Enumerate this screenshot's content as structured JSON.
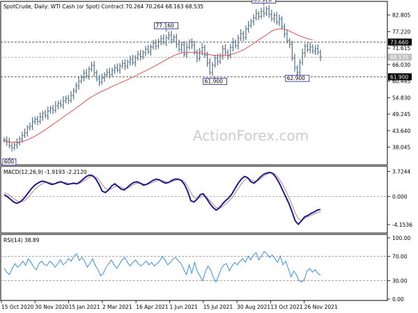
{
  "chart_data": [
    {
      "type": "ohlc",
      "name": "price",
      "title": "SpotCrude, Daily:  WTI Cash (or Spot) Contract  70.264 70.264 68.163 68.535",
      "ylim": [
        32.3,
        87.2
      ],
      "y_ticks": [
        "82.805",
        "77.220",
        "71.615",
        "66.030",
        "60.445",
        "54.830",
        "49.245",
        "43.640",
        "38.045"
      ],
      "y_tick_values": [
        82.805,
        77.22,
        71.615,
        66.03,
        60.445,
        54.83,
        49.245,
        43.64,
        38.045
      ],
      "closes": [
        40.5,
        39.8,
        38.6,
        37.9,
        38.8,
        39.5,
        40.8,
        42.1,
        42.9,
        44.6,
        45.2,
        46.7,
        47.5,
        46.8,
        48.3,
        49.5,
        48.7,
        50.3,
        51.2,
        50.6,
        52.1,
        52.9,
        52.3,
        53.8,
        54.6,
        53.9,
        55.5,
        57.2,
        58.8,
        60.4,
        61.7,
        63.1,
        62.2,
        64.5,
        65.8,
        63.3,
        61.2,
        60.1,
        61.5,
        62.6,
        63.4,
        62.7,
        64.1,
        64.9,
        64.2,
        65.6,
        66.4,
        65.5,
        66.9,
        67.8,
        66.7,
        68.3,
        69.5,
        68.7,
        70.1,
        71.2,
        70.4,
        72.0,
        73.1,
        72.3,
        73.9,
        74.8,
        73.6,
        75.1,
        76.0,
        74.4,
        75.3,
        73.0,
        71.2,
        72.8,
        69.5,
        71.9,
        73.7,
        72.6,
        70.3,
        68.1,
        70.5,
        71.8,
        69.2,
        66.6,
        63.4,
        65.9,
        68.2,
        67.1,
        69.0,
        71.4,
        70.2,
        69.0,
        71.8,
        73.6,
        72.4,
        74.9,
        76.5,
        75.2,
        78.1,
        79.3,
        80.6,
        81.9,
        83.3,
        82.4,
        84.1,
        83.4,
        84.9,
        83.1,
        81.6,
        82.7,
        80.4,
        81.5,
        78.8,
        76.4,
        74.1,
        72.9,
        68.2,
        65.0,
        63.4,
        66.7,
        69.9,
        72.3,
        71.1,
        72.0,
        70.6,
        71.4,
        70.2,
        68.535
      ],
      "ma_points": [
        [
          0,
          40.2
        ],
        [
          3,
          39.7
        ],
        [
          6,
          39.8
        ],
        [
          9,
          40.5
        ],
        [
          12,
          41.8
        ],
        [
          15,
          43.4
        ],
        [
          18,
          45.2
        ],
        [
          21,
          47.0
        ],
        [
          24,
          48.9
        ],
        [
          27,
          50.7
        ],
        [
          30,
          52.6
        ],
        [
          33,
          54.6
        ],
        [
          36,
          56.1
        ],
        [
          39,
          57.4
        ],
        [
          42,
          58.6
        ],
        [
          45,
          59.8
        ],
        [
          48,
          60.9
        ],
        [
          51,
          62.2
        ],
        [
          54,
          63.5
        ],
        [
          57,
          64.8
        ],
        [
          60,
          66.2
        ],
        [
          63,
          67.7
        ],
        [
          66,
          69.1
        ],
        [
          69,
          70.0
        ],
        [
          72,
          70.2
        ],
        [
          75,
          70.0
        ],
        [
          78,
          69.7
        ],
        [
          81,
          69.2
        ],
        [
          84,
          69.0
        ],
        [
          87,
          69.2
        ],
        [
          90,
          69.9
        ],
        [
          93,
          71.0
        ],
        [
          96,
          72.6
        ],
        [
          99,
          74.4
        ],
        [
          102,
          76.1
        ],
        [
          104,
          77.4
        ],
        [
          106,
          78.0
        ],
        [
          108,
          78.2
        ],
        [
          110,
          77.8
        ],
        [
          112,
          76.9
        ],
        [
          114,
          76.1
        ],
        [
          116,
          75.4
        ],
        [
          118,
          74.8
        ],
        [
          120,
          74.4
        ]
      ],
      "hlines": [
        {
          "label": "73.660",
          "value": 73.66
        },
        {
          "label": "68.535",
          "value": 68.535
        },
        {
          "label": "61.900",
          "value": 61.9
        }
      ],
      "annotations": [
        {
          "label": "85.920",
          "index": 101,
          "value": 85.92
        },
        {
          "label": "77.160",
          "index": 63,
          "value": 77.16
        },
        {
          "label": "61.900",
          "index": 82,
          "value": 61.9
        },
        {
          "label": "62.900",
          "index": 114,
          "value": 62.9
        },
        {
          "label": "600",
          "index": 2,
          "value": 34.6
        }
      ],
      "colors": {
        "bars": "#4f6f88",
        "ma": "#e05050",
        "hline_label_bg": "#000000",
        "current_label_bg": "#c0c0c0"
      }
    },
    {
      "type": "line",
      "name": "macd",
      "title": "MACD(12,26,9) -1.9193 -2.2120",
      "ylim": [
        -5.3,
        4.3
      ],
      "y_ticks": [
        "3.7244",
        "0.000",
        "-4.1536"
      ],
      "y_tick_values": [
        3.7244,
        0.0,
        -4.1536
      ],
      "macd": [
        0.3,
        0.0,
        -0.4,
        -0.8,
        -1.0,
        -0.8,
        -0.4,
        0.2,
        0.8,
        1.4,
        1.8,
        2.1,
        2.3,
        2.2,
        2.0,
        1.8,
        1.9,
        2.1,
        2.2,
        2.0,
        1.8,
        1.9,
        2.0,
        1.9,
        2.2,
        2.6,
        3.0,
        3.2,
        3.1,
        2.6,
        1.8,
        0.8,
        0.6,
        1.0,
        1.6,
        1.9,
        1.5,
        1.1,
        1.0,
        1.4,
        1.8,
        2.1,
        2.2,
        2.0,
        1.7,
        1.8,
        2.1,
        2.4,
        2.6,
        2.5,
        2.2,
        2.0,
        2.1,
        2.4,
        2.6,
        2.6,
        2.4,
        1.8,
        0.8,
        -0.6,
        -0.8,
        -0.4,
        0.3,
        0.4,
        -0.3,
        -1.0,
        -1.6,
        -2.0,
        -1.7,
        -1.1,
        -0.6,
        -0.2,
        0.4,
        1.2,
        2.0,
        2.6,
        3.0,
        2.8,
        2.2,
        2.0,
        2.4,
        2.9,
        3.3,
        3.5,
        3.6,
        3.4,
        2.8,
        2.0,
        1.0,
        0.0,
        -1.0,
        -2.2,
        -3.6,
        -4.1,
        -3.6,
        -3.0,
        -2.8,
        -2.5,
        -2.3,
        -2.0,
        -1.9193
      ],
      "signal": [
        0.6,
        0.4,
        0.1,
        -0.3,
        -0.6,
        -0.8,
        -0.7,
        -0.4,
        0.1,
        0.7,
        1.2,
        1.6,
        1.9,
        2.1,
        2.1,
        2.0,
        1.9,
        2.0,
        2.1,
        2.1,
        2.0,
        1.9,
        1.9,
        1.9,
        2.0,
        2.3,
        2.6,
        2.9,
        3.0,
        2.9,
        2.5,
        1.8,
        1.2,
        1.0,
        1.2,
        1.5,
        1.6,
        1.4,
        1.2,
        1.2,
        1.5,
        1.8,
        2.0,
        2.0,
        1.9,
        1.8,
        1.9,
        2.1,
        2.3,
        2.4,
        2.4,
        2.2,
        2.1,
        2.2,
        2.4,
        2.5,
        2.5,
        2.2,
        1.6,
        0.6,
        -0.1,
        -0.3,
        -0.1,
        0.1,
        -0.1,
        -0.6,
        -1.1,
        -1.6,
        -1.7,
        -1.5,
        -1.1,
        -0.7,
        -0.2,
        0.5,
        1.2,
        1.9,
        2.5,
        2.7,
        2.5,
        2.3,
        2.3,
        2.6,
        3.0,
        3.3,
        3.5,
        3.5,
        3.2,
        2.6,
        1.8,
        0.9,
        -0.1,
        -1.2,
        -2.4,
        -3.3,
        -3.5,
        -3.3,
        -3.0,
        -2.8,
        -2.6,
        -2.4,
        -2.212
      ],
      "colors": {
        "macd": "#1a1a8c",
        "signal": "#c08080"
      }
    },
    {
      "type": "line",
      "name": "rsi",
      "title": "RSI(14) 38.89",
      "ylim": [
        0,
        100
      ],
      "y_ticks": [
        "100.00",
        "70.00",
        "30.00",
        "0.00"
      ],
      "y_tick_values": [
        100,
        70,
        30,
        0
      ],
      "levels": [
        70,
        30
      ],
      "values": [
        50,
        44,
        40,
        50,
        58,
        52,
        56,
        62,
        55,
        66,
        60,
        52,
        48,
        58,
        62,
        56,
        55,
        62,
        58,
        52,
        58,
        64,
        56,
        60,
        66,
        62,
        70,
        74,
        63,
        68,
        62,
        52,
        58,
        66,
        55,
        48,
        38,
        42,
        52,
        58,
        64,
        56,
        50,
        57,
        64,
        68,
        60,
        54,
        60,
        64,
        58,
        54,
        58,
        62,
        56,
        60,
        54,
        58,
        62,
        70,
        64,
        56,
        60,
        66,
        68,
        62,
        58,
        48,
        40,
        56,
        42,
        60,
        46,
        38,
        30,
        44,
        54,
        48,
        36,
        28,
        38,
        50,
        56,
        58,
        46,
        54,
        60,
        56,
        62,
        66,
        60,
        70,
        64,
        72,
        76,
        64,
        70,
        78,
        74,
        68,
        72,
        66,
        60,
        70,
        56,
        62,
        50,
        36,
        46,
        40,
        30,
        28,
        32,
        46,
        50,
        44,
        48,
        42,
        38.89
      ],
      "colors": {
        "line": "#3a8ee8",
        "levels": "#888888"
      }
    }
  ],
  "x_axis": {
    "labels": [
      "15 Oct 2020",
      "30 Nov 2020",
      "15 Jan 2021",
      "2 Mar 2021",
      "16 Apr 2021",
      "1 Jun 2021",
      "15 Jul 2021",
      "30 Aug 2021",
      "13 Oct 2021",
      "26 Nov 2021"
    ]
  },
  "watermark": "ActionForex.com"
}
